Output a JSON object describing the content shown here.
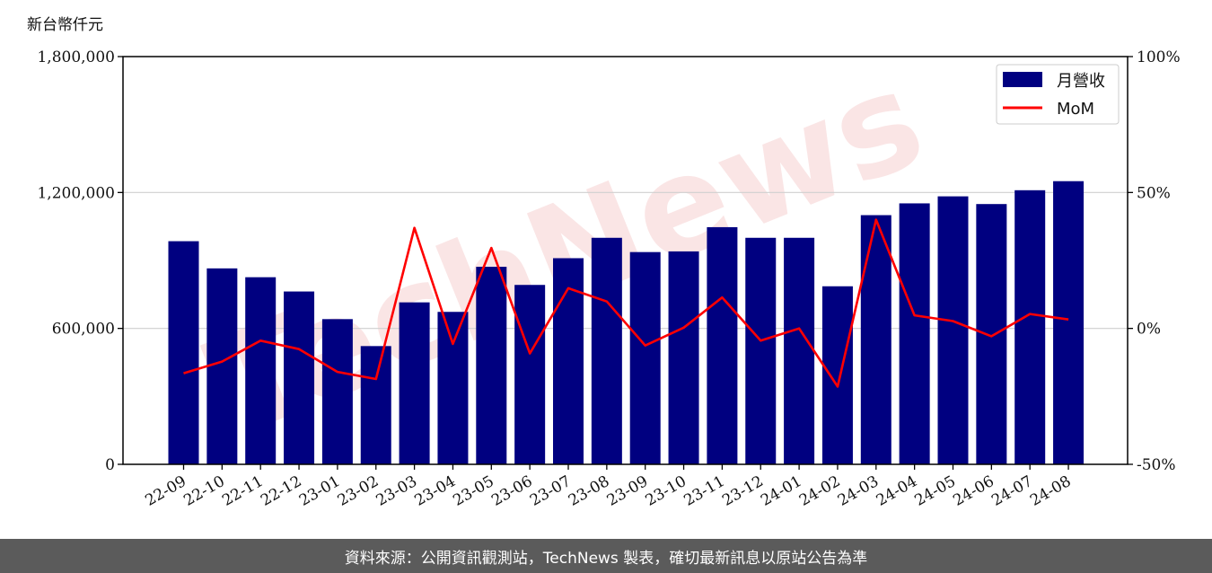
{
  "chart_data": {
    "type": "bar",
    "ylabel": "新台幣仟元",
    "categories": [
      "22-09",
      "22-10",
      "22-11",
      "22-12",
      "23-01",
      "23-02",
      "23-03",
      "23-04",
      "23-05",
      "23-06",
      "23-07",
      "23-08",
      "23-09",
      "23-10",
      "23-11",
      "23-12",
      "24-01",
      "24-02",
      "24-03",
      "24-04",
      "24-05",
      "24-06",
      "24-07",
      "24-08"
    ],
    "series": [
      {
        "name": "月營收",
        "type": "bar",
        "axis": "left",
        "color": "#000080",
        "values": [
          985000,
          865000,
          826000,
          763000,
          641000,
          522000,
          715000,
          673000,
          872000,
          792000,
          910000,
          1000000,
          937000,
          940000,
          1047000,
          1000000,
          1000000,
          786000,
          1100000,
          1152000,
          1183000,
          1149000,
          1210000,
          1250000
        ]
      },
      {
        "name": "MoM",
        "type": "line",
        "axis": "right",
        "color": "#ff0000",
        "values": [
          -16.5,
          -12.2,
          -4.5,
          -7.6,
          -16.0,
          -18.6,
          37.0,
          -5.7,
          29.6,
          -9.2,
          14.8,
          9.9,
          -6.3,
          0.3,
          11.4,
          -4.5,
          0.0,
          -21.4,
          40.0,
          4.8,
          2.7,
          -2.9,
          5.3,
          3.3
        ]
      }
    ],
    "yticks_left": [
      "0",
      "600,000",
      "1,200,000",
      "1,800,000"
    ],
    "yticks_right": [
      "-50%",
      "0%",
      "50%",
      "100%"
    ],
    "ylim_left": [
      0,
      1800000
    ],
    "ylim_right": [
      -50,
      100
    ],
    "grid": "horizontal",
    "legend": "top-right"
  },
  "watermark": "TechNews",
  "footer_text": "資料來源：公開資訊觀測站，TechNews 製表，確切最新訊息以原站公告為準"
}
